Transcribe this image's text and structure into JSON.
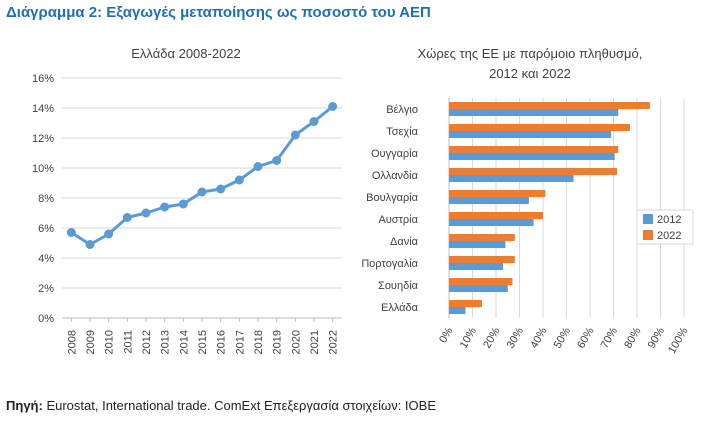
{
  "page": {
    "title": "Διάγραμμα 2: Εξαγωγές μεταποίησης ως ποσοστό του ΑΕΠ",
    "source_label": "Πηγή:",
    "source_text": " Eurostat, International trade. ComExt Επεξεργασία στοιχείων: ΙΟΒΕ"
  },
  "chart_data": [
    {
      "type": "line",
      "title": "Ελλάδα 2008-2022",
      "color": "#5b9bd5",
      "x": [
        "2008",
        "2009",
        "2010",
        "2011",
        "2012",
        "2013",
        "2014",
        "2015",
        "2016",
        "2017",
        "2018",
        "2019",
        "2020",
        "2021",
        "2022"
      ],
      "values": [
        5.7,
        4.9,
        5.6,
        6.7,
        7.0,
        7.4,
        7.6,
        8.4,
        8.6,
        9.2,
        10.1,
        10.5,
        12.2,
        13.1,
        14.1
      ],
      "ylim": [
        0,
        16
      ],
      "yticks": [
        0,
        2,
        4,
        6,
        8,
        10,
        12,
        14,
        16
      ],
      "ytick_labels": [
        "0%",
        "2%",
        "4%",
        "6%",
        "8%",
        "10%",
        "12%",
        "14%",
        "16%"
      ],
      "grid": true
    },
    {
      "type": "bar",
      "orientation": "horizontal",
      "title_lines": [
        "Χώρες της ΕΕ με παρόμοιο πληθυσμό,",
        "2012 και 2022"
      ],
      "categories": [
        "Βέλγιο",
        "Τσεχία",
        "Ουγγαρία",
        "Ολλανδία",
        "Βουλγαρία",
        "Αυστρία",
        "Δανία",
        "Πορτογαλία",
        "Σουηδία",
        "Ελλάδα"
      ],
      "series": [
        {
          "name": "2012",
          "color": "#5b9bd5",
          "values": [
            72,
            69,
            70.5,
            53,
            34,
            36,
            24,
            23,
            25,
            7
          ]
        },
        {
          "name": "2022",
          "color": "#ed7d31",
          "values": [
            85.5,
            77,
            72,
            71.5,
            41,
            40,
            28,
            28,
            27,
            14
          ]
        }
      ],
      "xlim": [
        0,
        100
      ],
      "xticks": [
        0,
        10,
        20,
        30,
        40,
        50,
        60,
        70,
        80,
        90,
        100
      ],
      "xtick_labels": [
        "0%",
        "10%",
        "20%",
        "30%",
        "40%",
        "50%",
        "60%",
        "70%",
        "80%",
        "90%",
        "100%"
      ],
      "legend_position": "right",
      "grid": true
    }
  ]
}
